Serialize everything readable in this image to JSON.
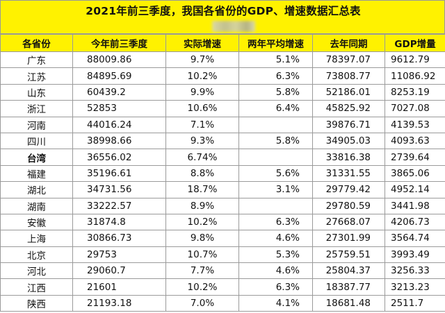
{
  "title": "2021年前三季度，我国各省份的GDP、增速数据汇总表",
  "headers": [
    "各省份",
    "今年前三季度",
    "实际增速",
    "两年平均增速",
    "去年同期",
    "GDP增量"
  ],
  "rows": [
    {
      "name": "广东",
      "ytd": "88009.86",
      "growth": "9.7%",
      "avg2": "5.1%",
      "last": "78397.07",
      "inc": "9612.79"
    },
    {
      "name": "江苏",
      "ytd": "84895.69",
      "growth": "10.2%",
      "avg2": "6.3%",
      "last": "73808.77",
      "inc": "11086.92"
    },
    {
      "name": "山东",
      "ytd": "60439.2",
      "growth": "9.9%",
      "avg2": "5.8%",
      "last": "52186.01",
      "inc": "8253.19"
    },
    {
      "name": "浙江",
      "ytd": "52853",
      "growth": "10.6%",
      "avg2": "6.4%",
      "last": "45825.92",
      "inc": "7027.08"
    },
    {
      "name": "河南",
      "ytd": "44016.24",
      "growth": "7.1%",
      "avg2": "",
      "last": "39876.71",
      "inc": "4139.53"
    },
    {
      "name": "四川",
      "ytd": "38998.66",
      "growth": "9.3%",
      "avg2": "5.8%",
      "last": "34905.03",
      "inc": "4093.63"
    },
    {
      "name": "台湾",
      "ytd": "36556.02",
      "growth": "6.74%",
      "avg2": "",
      "last": "33816.38",
      "inc": "2739.64",
      "bold": true
    },
    {
      "name": "福建",
      "ytd": "35196.61",
      "growth": "8.8%",
      "avg2": "5.6%",
      "last": "31331.55",
      "inc": "3865.06"
    },
    {
      "name": "湖北",
      "ytd": "34731.56",
      "growth": "18.7%",
      "avg2": "3.1%",
      "last": "29779.42",
      "inc": "4952.14"
    },
    {
      "name": "湖南",
      "ytd": "33222.57",
      "growth": "8.9%",
      "avg2": "",
      "last": "29780.59",
      "inc": "3441.98"
    },
    {
      "name": "安徽",
      "ytd": "31874.8",
      "growth": "10.2%",
      "avg2": "6.3%",
      "last": "27668.07",
      "inc": "4206.73"
    },
    {
      "name": "上海",
      "ytd": "30866.73",
      "growth": "9.8%",
      "avg2": "4.6%",
      "last": "27301.99",
      "inc": "3564.74"
    },
    {
      "name": "北京",
      "ytd": "29753",
      "growth": "10.7%",
      "avg2": "5.3%",
      "last": "25759.51",
      "inc": "3993.49"
    },
    {
      "name": "河北",
      "ytd": "29060.7",
      "growth": "7.7%",
      "avg2": "4.6%",
      "last": "25804.37",
      "inc": "3256.33"
    },
    {
      "name": "江西",
      "ytd": "21601",
      "growth": "10.2%",
      "avg2": "6.3%",
      "last": "18387.77",
      "inc": "3213.23"
    },
    {
      "name": "陕西",
      "ytd": "21193.18",
      "growth": "7.0%",
      "avg2": "4.1%",
      "last": "18681.48",
      "inc": "2511.7"
    }
  ]
}
